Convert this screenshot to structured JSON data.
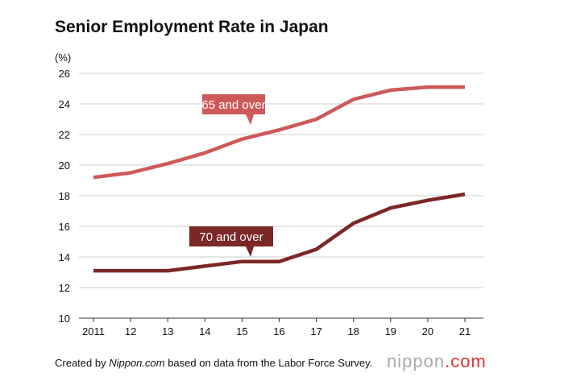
{
  "chart_data": {
    "type": "line",
    "title": "Senior Employment Rate in Japan",
    "ylabel": "(%)",
    "xlabel": "",
    "x": [
      "2011",
      "12",
      "13",
      "14",
      "15",
      "16",
      "17",
      "18",
      "19",
      "20",
      "21"
    ],
    "ylim": [
      10,
      26
    ],
    "yticks": [
      10,
      12,
      14,
      16,
      18,
      20,
      22,
      24,
      26
    ],
    "grid": true,
    "series": [
      {
        "name": "65 and over",
        "color": "#cd5a58",
        "values": [
          19.2,
          19.5,
          20.1,
          20.8,
          21.7,
          22.3,
          23.0,
          24.3,
          24.9,
          25.1,
          25.1
        ]
      },
      {
        "name": "70 and over",
        "color": "#7b2726",
        "values": [
          13.1,
          13.1,
          13.1,
          13.4,
          13.7,
          13.7,
          14.5,
          16.2,
          17.2,
          17.7,
          18.1
        ]
      }
    ]
  },
  "footer": {
    "prefix": "Created by ",
    "source": "Nippon.com",
    "suffix": " based on data from the Labor Force Survey."
  },
  "logo": {
    "name": "nippon",
    "dot": ".com"
  }
}
